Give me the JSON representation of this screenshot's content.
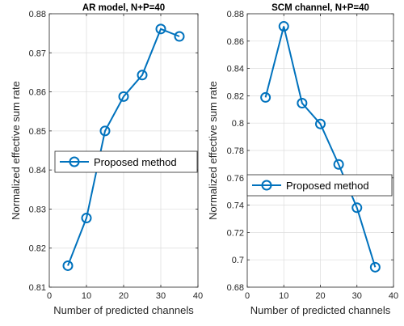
{
  "chart_data": [
    {
      "type": "line",
      "title": "AR model, N+P=40",
      "xlabel": "Number of predicted channels",
      "ylabel": "Normalized effective sum rate",
      "xlim": [
        0,
        40
      ],
      "ylim": [
        0.81,
        0.88
      ],
      "xticks": [
        "0",
        "10",
        "20",
        "30",
        "40"
      ],
      "yticks": [
        "0.81",
        "0.82",
        "0.83",
        "0.84",
        "0.85",
        "0.86",
        "0.87",
        "0.88"
      ],
      "grid": true,
      "legend_position": "middle-left",
      "series": [
        {
          "name": "Proposed method",
          "color": "#0072BD",
          "marker": "circle",
          "x": [
            5,
            10,
            15,
            20,
            25,
            30,
            35
          ],
          "y": [
            0.8155,
            0.8277,
            0.85,
            0.8588,
            0.8643,
            0.8761,
            0.8742
          ]
        }
      ]
    },
    {
      "type": "line",
      "title": "SCM channel, N+P=40",
      "xlabel": "Number of predicted channels",
      "ylabel": "Normalized effective sum rate",
      "xlim": [
        0,
        40
      ],
      "ylim": [
        0.68,
        0.88
      ],
      "xticks": [
        "0",
        "10",
        "20",
        "30",
        "40"
      ],
      "yticks": [
        "0.68",
        "0.7",
        "0.72",
        "0.74",
        "0.76",
        "0.78",
        "0.8",
        "0.82",
        "0.84",
        "0.86",
        "0.88"
      ],
      "grid": true,
      "legend_position": "middle-right",
      "series": [
        {
          "name": "Proposed method",
          "color": "#0072BD",
          "marker": "circle",
          "x": [
            5,
            10,
            15,
            20,
            25,
            30,
            35
          ],
          "y": [
            0.8188,
            0.8708,
            0.8146,
            0.7994,
            0.7698,
            0.7381,
            0.6946
          ]
        }
      ]
    }
  ]
}
